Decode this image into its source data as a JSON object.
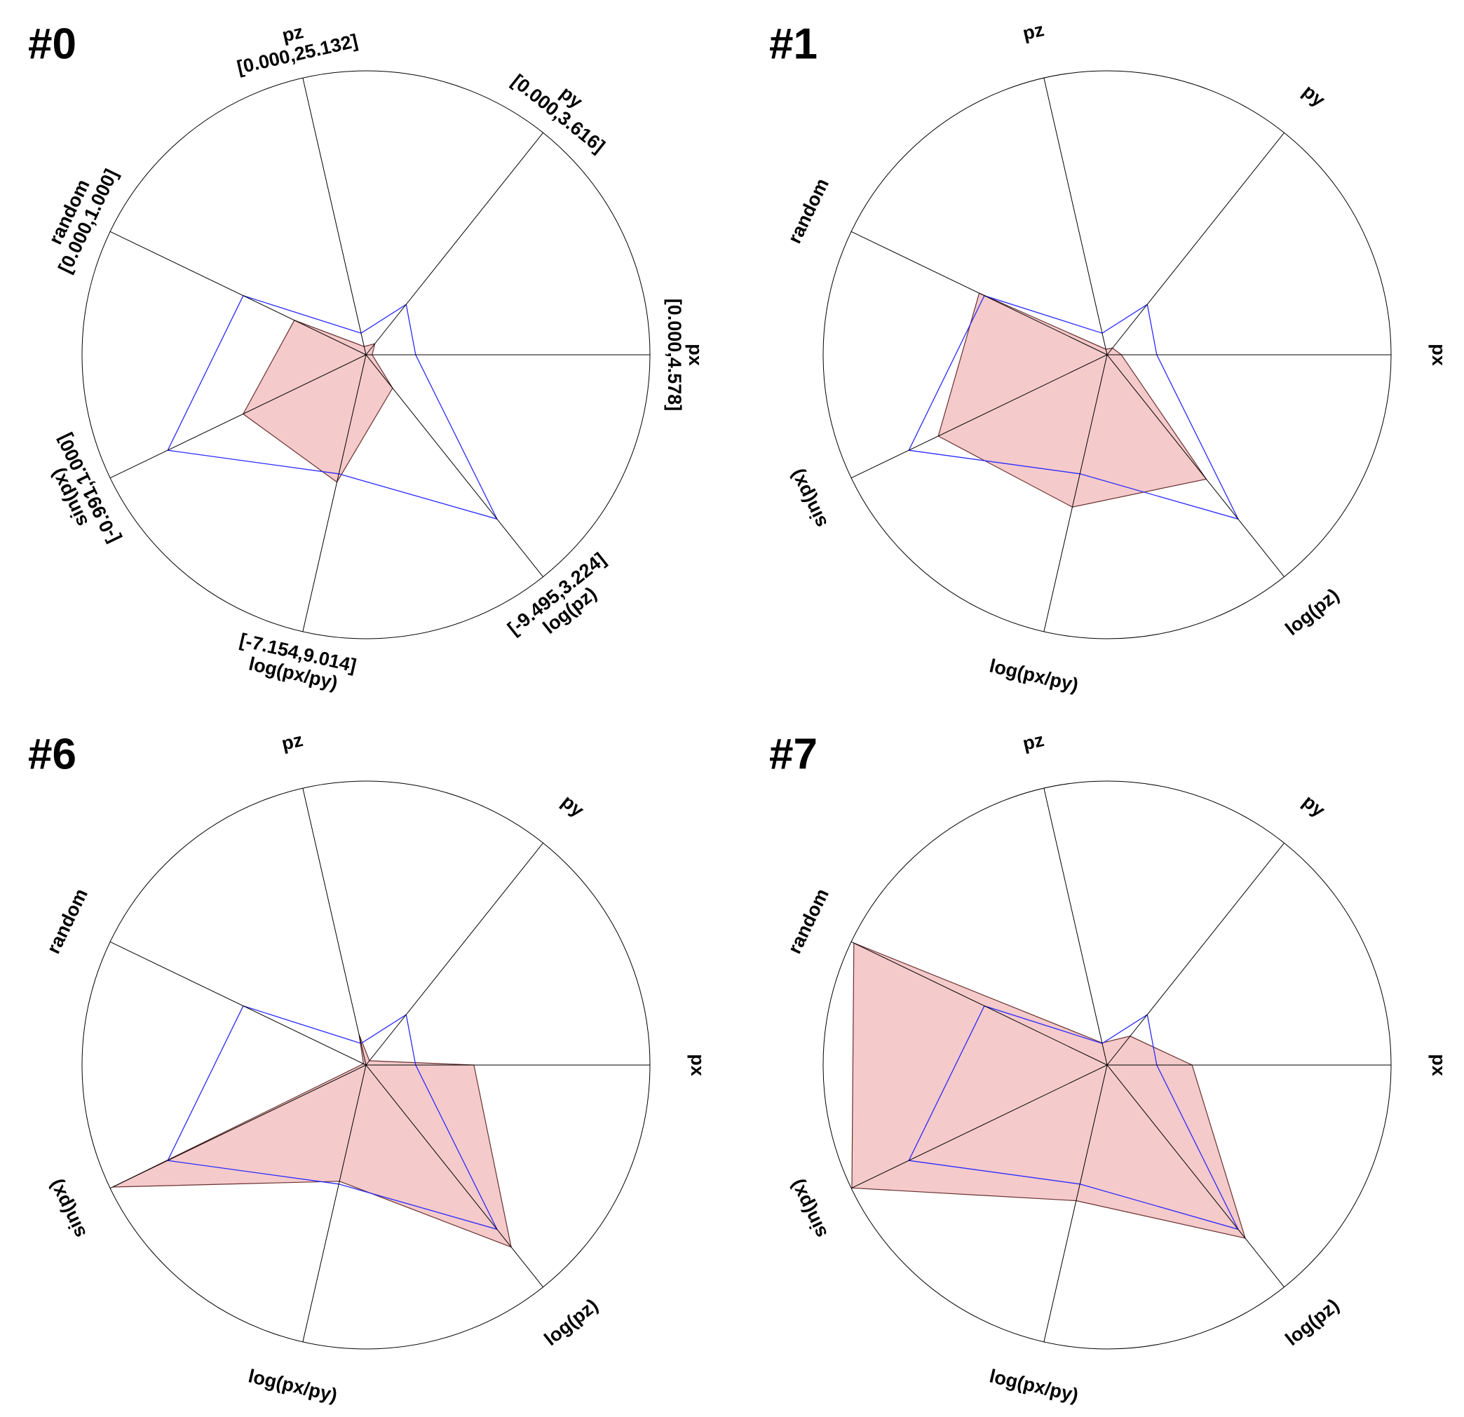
{
  "chart_data": [
    {
      "type": "radar",
      "title": "#0",
      "categories": [
        "px",
        "py",
        "pz",
        "random",
        "sin(px)",
        "log(px/py)",
        "log(pz)"
      ],
      "ranges": [
        [
          0,
          4.578
        ],
        [
          0,
          3.616
        ],
        [
          0,
          25.132
        ],
        [
          0,
          1
        ],
        [
          -0.991,
          1
        ],
        [
          -7.154,
          9.014
        ],
        [
          -9.495,
          3.224
        ]
      ],
      "range_labels": [
        "[0.000,4.578]",
        "[0.000,3.616]",
        "[0.000,25.132]",
        "[0.000,1.000]",
        "[-0.991,1.000]",
        "[-7.154,9.014]",
        "[-9.495,3.224]"
      ],
      "series": [
        {
          "color": "#f4c4c4",
          "values": [
            0.1,
            0.18,
            0.75,
            0.28,
            -0.035,
            0.283,
            -7.587
          ]
        },
        {
          "color": "#2a2aff",
          "values": [
            0.8,
            0.82,
            1.96,
            0.48,
            0.552,
            -0.202,
            -0.083
          ]
        }
      ]
    },
    {
      "type": "radar",
      "title": "#1",
      "categories": [
        "px",
        "py",
        "pz",
        "random",
        "sin(px)",
        "log(px/py)",
        "log(pz)"
      ],
      "ranges": [
        [
          0,
          4.578
        ],
        [
          0,
          3.616
        ],
        [
          0,
          25.132
        ],
        [
          0,
          1
        ],
        [
          -0.991,
          1
        ],
        [
          -7.154,
          9.014
        ],
        [
          -9.495,
          3.224
        ]
      ],
      "series": [
        {
          "color": "#f4c4c4",
          "values": [
            0.23,
            0.11,
            0.5,
            0.5,
            0.323,
            1.738,
            -2.372
          ]
        },
        {
          "color": "#2a2aff",
          "values": [
            0.8,
            0.82,
            1.96,
            0.48,
            0.552,
            -0.202,
            -0.083
          ]
        }
      ]
    },
    {
      "type": "radar",
      "title": "#6",
      "categories": [
        "px",
        "py",
        "pz",
        "random",
        "sin(px)",
        "log(px/py)",
        "log(pz)"
      ],
      "ranges": [
        [
          0,
          4.578
        ],
        [
          0,
          3.616
        ],
        [
          0,
          25.132
        ],
        [
          0,
          1
        ],
        [
          -0.991,
          1
        ],
        [
          -7.154,
          9.014
        ],
        [
          -9.495,
          3.224
        ]
      ],
      "series": [
        {
          "color": "#f4c4c4",
          "values": [
            1.74,
            0.07,
            2.76,
            0.01,
            0.98,
            -0.364,
            0.935
          ]
        },
        {
          "color": "#2a2aff",
          "values": [
            0.8,
            0.82,
            1.96,
            0.48,
            0.552,
            -0.202,
            -0.083
          ]
        }
      ]
    },
    {
      "type": "radar",
      "title": "#7",
      "categories": [
        "px",
        "py",
        "pz",
        "random",
        "sin(px)",
        "log(px/py)",
        "log(pz)"
      ],
      "ranges": [
        [
          0,
          4.578
        ],
        [
          0,
          3.616
        ],
        [
          0,
          25.132
        ],
        [
          0,
          1
        ],
        [
          -0.991,
          1
        ],
        [
          -7.154,
          9.014
        ],
        [
          -9.495,
          3.224
        ]
      ],
      "series": [
        {
          "color": "#f4c4c4",
          "values": [
            1.37,
            0.47,
            2.01,
            0.99,
            0.995,
            0.768,
            0.426
          ]
        },
        {
          "color": "#2a2aff",
          "values": [
            0.8,
            0.82,
            1.96,
            0.48,
            0.552,
            -0.202,
            -0.083
          ]
        }
      ]
    }
  ]
}
